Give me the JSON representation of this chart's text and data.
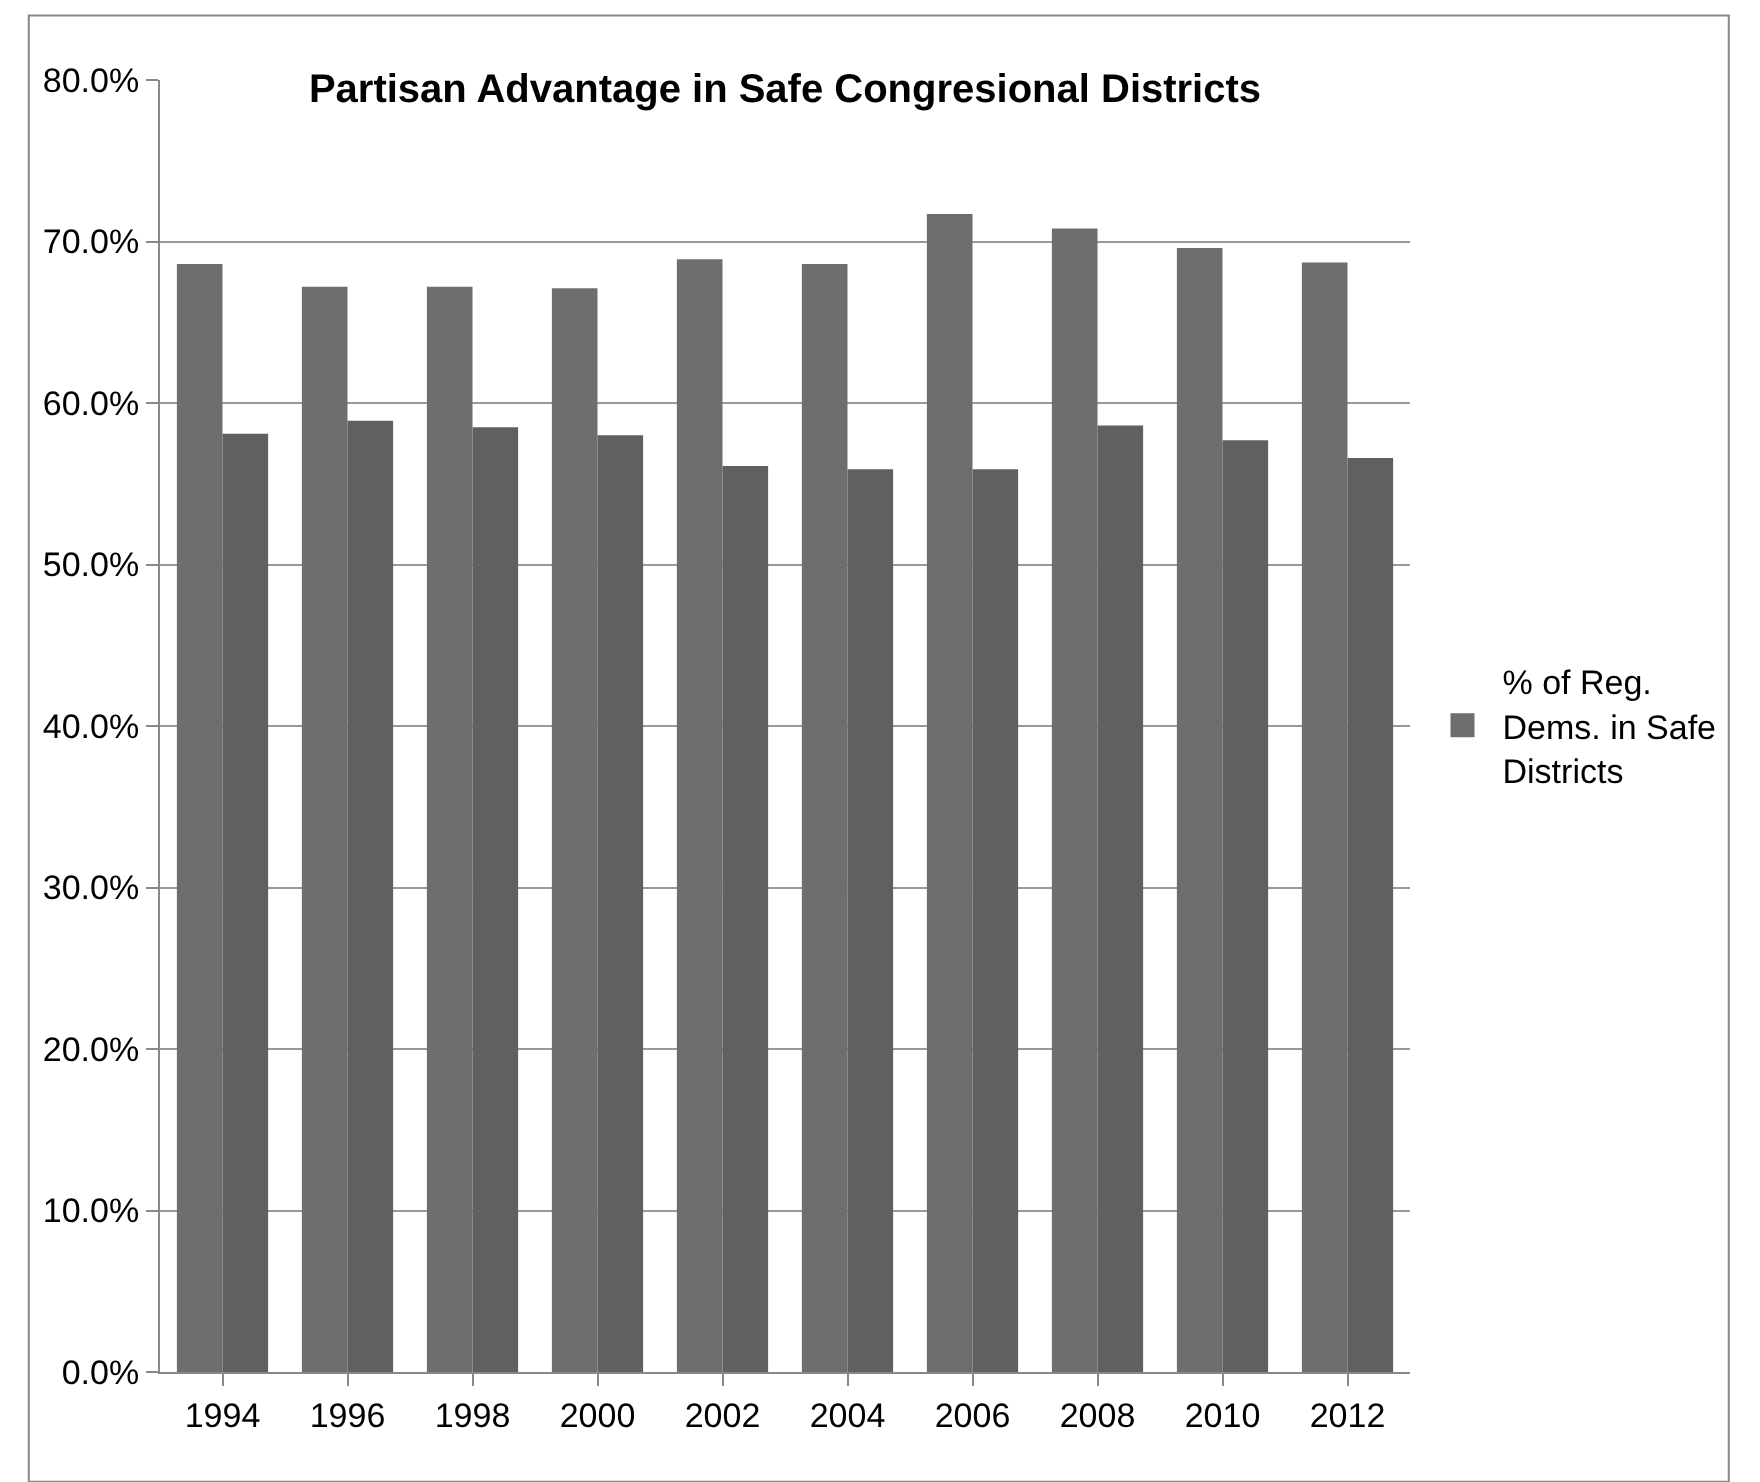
{
  "chart_data": {
    "type": "bar",
    "title": "Partisan Advantage in Safe Congresional Districts",
    "categories": [
      "1994",
      "1996",
      "1998",
      "2000",
      "2002",
      "2004",
      "2006",
      "2008",
      "2010",
      "2012"
    ],
    "series": [
      {
        "name": "% of Reg. Dems. in Safe Districts",
        "color": "#6e6e6e",
        "values": [
          68.6,
          67.2,
          67.2,
          67.1,
          68.9,
          68.6,
          71.7,
          70.8,
          69.6,
          68.7
        ]
      },
      {
        "color": "#606060",
        "values": [
          58.1,
          58.9,
          58.5,
          58.0,
          56.1,
          55.9,
          55.9,
          58.6,
          57.7,
          56.6
        ]
      }
    ],
    "ylim": [
      0,
      80
    ],
    "yticks": [
      {
        "value": 0,
        "label": "0.0%"
      },
      {
        "value": 10,
        "label": "10.0%"
      },
      {
        "value": 20,
        "label": "20.0%"
      },
      {
        "value": 30,
        "label": "30.0%"
      },
      {
        "value": 40,
        "label": "40.0%"
      },
      {
        "value": 50,
        "label": "50.0%"
      },
      {
        "value": 60,
        "label": "60.0%"
      },
      {
        "value": 70,
        "label": "70.0%"
      },
      {
        "value": 80,
        "label": "80.0%"
      }
    ],
    "grid": "y",
    "legend": "right"
  }
}
